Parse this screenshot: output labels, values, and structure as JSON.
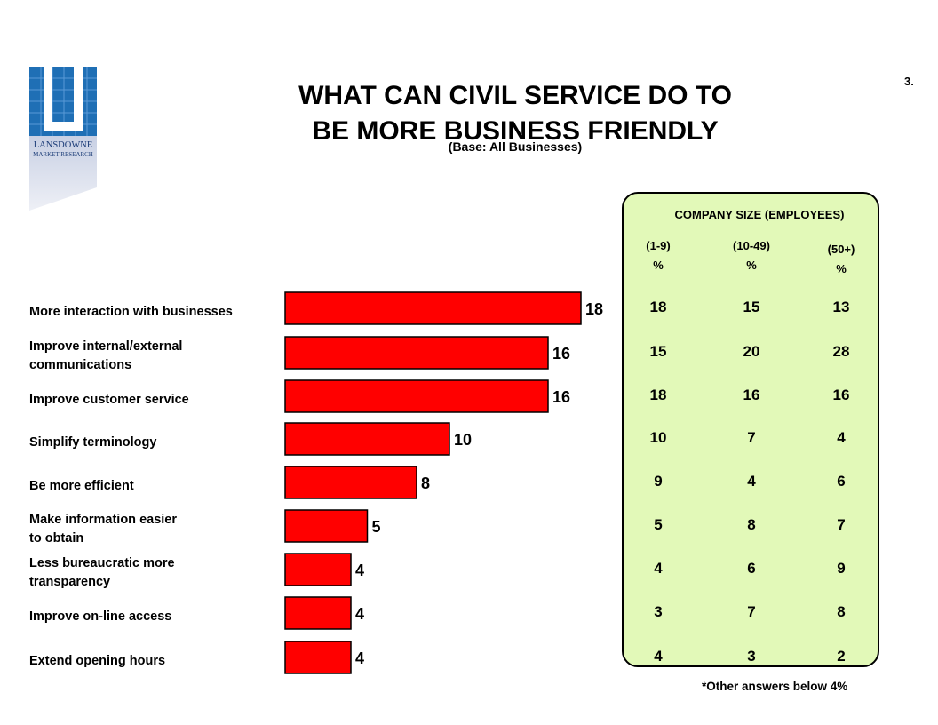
{
  "logo": {
    "text_line1": "LANSDOWNE",
    "text_line2": "MARKET RESEARCH"
  },
  "title_line1": "WHAT CAN CIVIL SERVICE DO TO",
  "title_line2": "BE MORE BUSINESS FRIENDLY",
  "subtitle": "(Base: All Businesses)",
  "slide_number": "3.",
  "footnote": "*Other answers below 4%",
  "colors": {
    "bar": "#ff0000",
    "panel": "#e2f9b8"
  },
  "chart_data": {
    "type": "bar",
    "orientation": "horizontal",
    "categories": [
      "More interaction with businesses",
      "Improve internal/external communications",
      "Improve customer service",
      "Simplify terminology",
      "Be more efficient",
      "Make information easier to obtain",
      "Less bureaucratic more transparency",
      "Improve on-line access",
      "Extend opening hours"
    ],
    "category_lines": [
      [
        "More interaction with businesses"
      ],
      [
        "Improve internal/external",
        "communications"
      ],
      [
        "Improve customer service"
      ],
      [
        "Simplify terminology"
      ],
      [
        "Be more efficient"
      ],
      [
        "Make information easier",
        "to obtain"
      ],
      [
        "Less bureaucratic more",
        "transparency"
      ],
      [
        "Improve on-line access"
      ],
      [
        "Extend opening hours"
      ]
    ],
    "values": [
      18,
      16,
      16,
      10,
      8,
      5,
      4,
      4,
      4
    ],
    "xlim": [
      0,
      18
    ]
  },
  "table": {
    "title": "COMPANY  SIZE (EMPLOYEES)",
    "columns": [
      {
        "label": "(1-9)",
        "unit": "%"
      },
      {
        "label": "(10-49)",
        "unit": "%"
      },
      {
        "label": "(50+)",
        "unit": "%"
      }
    ],
    "rows": [
      [
        18,
        15,
        13
      ],
      [
        15,
        20,
        28
      ],
      [
        18,
        16,
        16
      ],
      [
        10,
        7,
        4
      ],
      [
        9,
        4,
        6
      ],
      [
        5,
        8,
        7
      ],
      [
        4,
        6,
        9
      ],
      [
        3,
        7,
        8
      ],
      [
        4,
        3,
        2
      ]
    ]
  }
}
